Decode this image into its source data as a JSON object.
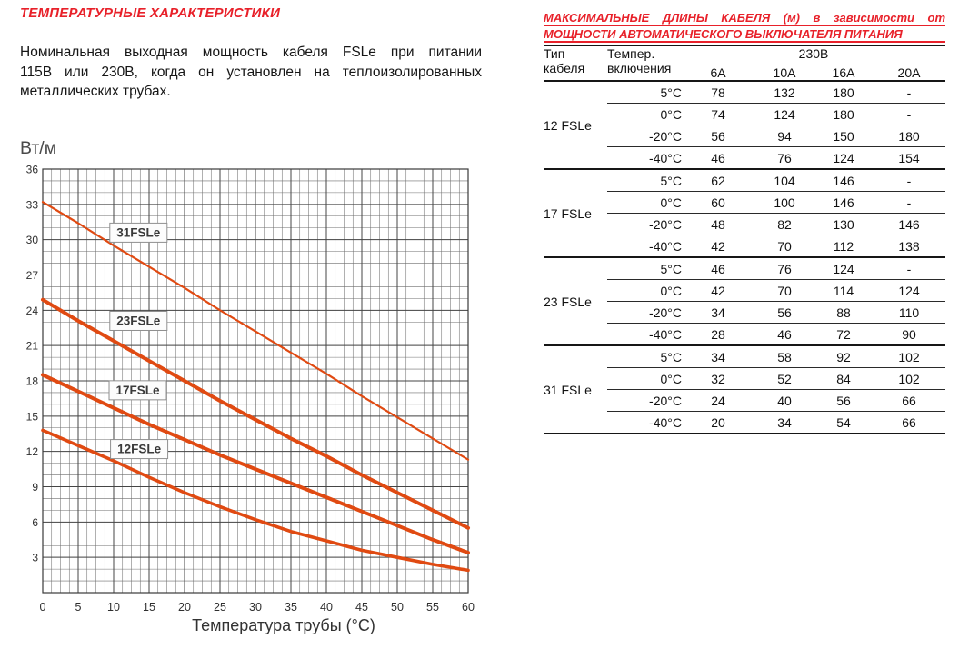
{
  "colors": {
    "accent_red": "#e8212a",
    "curve_orange": "#e04a12",
    "grid_minor": "#6f6f6f",
    "grid_major": "#454545",
    "plot_border": "#3a3a3a",
    "axis_text": "#2f2f2f",
    "ylabel_text": "#4a4a4a",
    "label_box_fill": "#fcfcfc",
    "label_box_border": "#8f8f8f",
    "label_text": "#3a3a3a"
  },
  "left": {
    "title": "ТЕМПЕРАТУРНЫЕ ХАРАКТЕРИСТИКИ",
    "paragraph_lines": [
      "Номинальная выходная мощность кабеля FSLe при питании",
      "115В или 230В, когда он установлен на теплоизолированных",
      "металлических трубах."
    ]
  },
  "chart_data": {
    "type": "line",
    "title": "",
    "ylabel": "Вт/м",
    "xlabel": "Температура трубы (°C)",
    "xlim": [
      0,
      60
    ],
    "ylim": [
      0,
      36
    ],
    "xticks": [
      0,
      5,
      10,
      15,
      20,
      25,
      30,
      35,
      40,
      45,
      50,
      55,
      60
    ],
    "yticks": [
      3,
      6,
      9,
      12,
      15,
      18,
      21,
      24,
      27,
      30,
      33,
      36
    ],
    "grid": {
      "on": true,
      "minor_x_step": 1.25,
      "minor_y_step": 1
    },
    "legend_position": "inline-labels",
    "x": [
      0,
      5,
      10,
      15,
      20,
      25,
      30,
      35,
      40,
      45,
      50,
      55,
      60
    ],
    "series": [
      {
        "name": "31FSLe",
        "stroke_width": 2.2,
        "values": [
          33.2,
          31.4,
          29.5,
          27.7,
          25.9,
          24.0,
          22.2,
          20.4,
          18.6,
          16.7,
          14.9,
          13.1,
          11.3
        ]
      },
      {
        "name": "23FSLe",
        "stroke_width": 4,
        "values": [
          24.9,
          23.1,
          21.4,
          19.7,
          18.0,
          16.3,
          14.7,
          13.1,
          11.6,
          10.0,
          8.5,
          7.0,
          5.5
        ]
      },
      {
        "name": "17FSLe",
        "stroke_width": 4,
        "values": [
          18.5,
          17.1,
          15.7,
          14.3,
          13.0,
          11.7,
          10.5,
          9.3,
          8.1,
          6.9,
          5.7,
          4.5,
          3.4
        ]
      },
      {
        "name": "12FSLe",
        "stroke_width": 3.6,
        "values": [
          13.8,
          12.5,
          11.2,
          9.8,
          8.5,
          7.3,
          6.2,
          5.2,
          4.4,
          3.6,
          3.0,
          2.4,
          1.9
        ]
      }
    ],
    "labels": [
      {
        "text": "31FSLe",
        "x": 13.5,
        "y": 30.6
      },
      {
        "text": "23FSLe",
        "x": 13.5,
        "y": 23.1
      },
      {
        "text": "17FSLe",
        "x": 13.4,
        "y": 17.2
      },
      {
        "text": "12FSLe",
        "x": 13.6,
        "y": 12.2
      }
    ]
  },
  "table": {
    "title_lines": [
      "МАКСИМАЛЬНЫЕ ДЛИНЫ КАБЕЛЯ (м) в зависимости от",
      "МОЩНОСТИ АВТОМАТИЧЕСКОГО ВЫКЛЮЧАТЕЛЯ ПИТАНИЯ"
    ],
    "header": {
      "col_type_lines": [
        "Тип",
        "кабеля"
      ],
      "col_temp_lines": [
        "Темпер.",
        "включения"
      ],
      "voltage": "230В",
      "amps": [
        "6A",
        "10A",
        "16A",
        "20A"
      ]
    },
    "groups": [
      {
        "type": "12 FSLe",
        "rows": [
          {
            "temp": "5°C",
            "values": [
              "78",
              "132",
              "180",
              "-"
            ]
          },
          {
            "temp": "0°C",
            "values": [
              "74",
              "124",
              "180",
              "-"
            ]
          },
          {
            "temp": "-20°C",
            "values": [
              "56",
              "94",
              "150",
              "180"
            ]
          },
          {
            "temp": "-40°C",
            "values": [
              "46",
              "76",
              "124",
              "154"
            ]
          }
        ]
      },
      {
        "type": "17 FSLe",
        "rows": [
          {
            "temp": "5°C",
            "values": [
              "62",
              "104",
              "146",
              "-"
            ]
          },
          {
            "temp": "0°C",
            "values": [
              "60",
              "100",
              "146",
              "-"
            ]
          },
          {
            "temp": "-20°C",
            "values": [
              "48",
              "82",
              "130",
              "146"
            ]
          },
          {
            "temp": "-40°C",
            "values": [
              "42",
              "70",
              "112",
              "138"
            ]
          }
        ]
      },
      {
        "type": "23 FSLe",
        "rows": [
          {
            "temp": "5°C",
            "values": [
              "46",
              "76",
              "124",
              "-"
            ]
          },
          {
            "temp": "0°C",
            "values": [
              "42",
              "70",
              "114",
              "124"
            ]
          },
          {
            "temp": "-20°C",
            "values": [
              "34",
              "56",
              "88",
              "110"
            ]
          },
          {
            "temp": "-40°C",
            "values": [
              "28",
              "46",
              "72",
              "90"
            ]
          }
        ]
      },
      {
        "type": "31 FSLe",
        "rows": [
          {
            "temp": "5°C",
            "values": [
              "34",
              "58",
              "92",
              "102"
            ]
          },
          {
            "temp": "0°C",
            "values": [
              "32",
              "52",
              "84",
              "102"
            ]
          },
          {
            "temp": "-20°C",
            "values": [
              "24",
              "40",
              "56",
              "66"
            ]
          },
          {
            "temp": "-40°C",
            "values": [
              "20",
              "34",
              "54",
              "66"
            ]
          }
        ]
      }
    ]
  }
}
